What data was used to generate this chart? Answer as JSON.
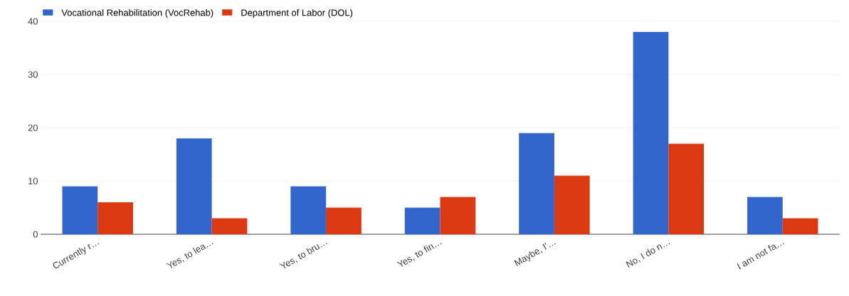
{
  "chart_data": {
    "type": "bar",
    "categories": [
      "Currently r…",
      "Yes, to lea…",
      "Yes, to bru…",
      "Yes, to fin…",
      "Maybe, I'…",
      "No, I do n…",
      "I am not fa…"
    ],
    "series": [
      {
        "name": "Vocational Rehabilitation (VocRehab)",
        "color": "#3366cc",
        "values": [
          9,
          18,
          9,
          5,
          19,
          38,
          7
        ]
      },
      {
        "name": "Department of Labor (DOL)",
        "color": "#dc3912",
        "values": [
          6,
          3,
          5,
          7,
          11,
          17,
          3
        ]
      }
    ],
    "ylim": [
      0,
      40
    ],
    "yticks": [
      0,
      10,
      20,
      30,
      40
    ],
    "grid": "y",
    "legend": "top left"
  }
}
